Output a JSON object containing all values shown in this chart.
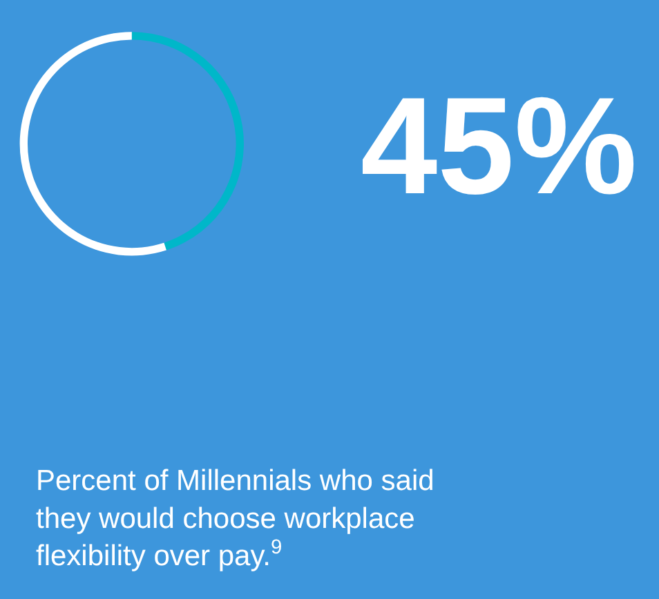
{
  "chart_data": {
    "type": "donut",
    "categories": [
      null,
      null
    ],
    "values": [
      45,
      55
    ],
    "colors": [
      "#00b7c9",
      "#ffffff"
    ],
    "value_labels": [
      "45%",
      null
    ],
    "annotations": [
      "Percent of Millennials who said they would choose workplace flexibility over pay.$^{9}$"
    ]
  }
}
